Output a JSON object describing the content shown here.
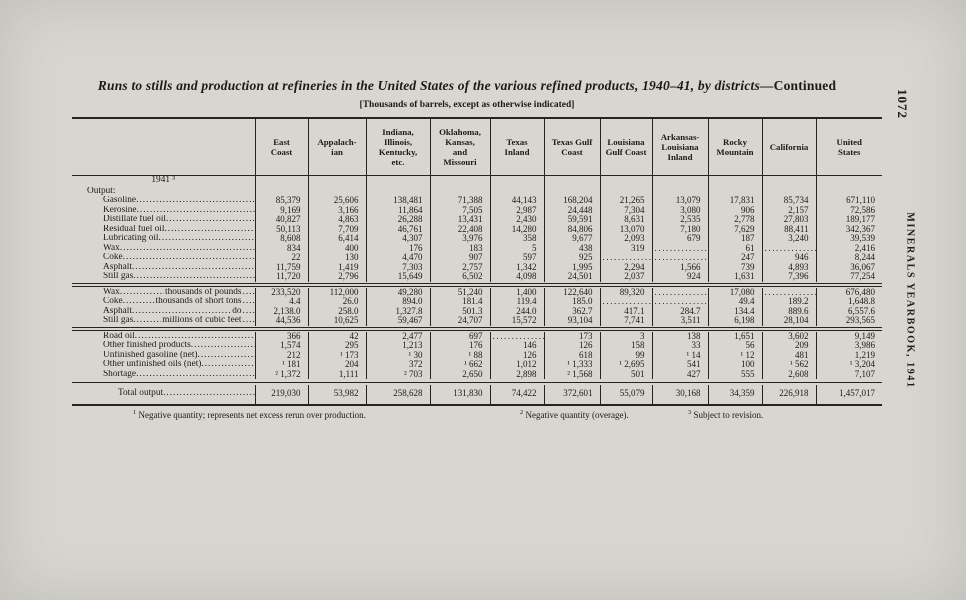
{
  "page": {
    "number": "1072",
    "side_text": "MINERALS YEARBOOK, 1941",
    "title_italic": "Runs to stills and production at refineries in the United States of the various refined products, 1940–41, by districts—",
    "title_continued": "Continued",
    "subtitle": "[Thousands of barrels, except as otherwise indicated]"
  },
  "table": {
    "stub": {
      "year_heading": "1941 ³",
      "section": "Output:",
      "total_label": "Total output"
    },
    "columns": [
      "East\nCoast",
      "Appalach-\nian",
      "Indiana,\nIllinois,\nKentucky,\netc.",
      "Oklahoma,\nKansas,\nand\nMissouri",
      "Texas\nInland",
      "Texas Gulf\nCoast",
      "Louisiana\nGulf Coast",
      "Arkansas-\nLouisiana\nInland",
      "Rocky\nMountain",
      "California",
      "United\nStates"
    ],
    "groups": [
      {
        "rows": [
          {
            "label": "Gasoline",
            "cells": [
              "85,379",
              "25,606",
              "138,481",
              "71,388",
              "44,143",
              "168,204",
              "21,265",
              "13,079",
              "17,831",
              "85,734",
              "671,110"
            ]
          },
          {
            "label": "Kerosine",
            "cells": [
              "9,169",
              "3,166",
              "11,864",
              "7,505",
              "2,987",
              "24,448",
              "7,304",
              "3,080",
              "906",
              "2,157",
              "72,586"
            ]
          },
          {
            "label": "Distillate fuel oil",
            "cells": [
              "40,827",
              "4,863",
              "26,288",
              "13,431",
              "2,430",
              "59,591",
              "8,631",
              "2,535",
              "2,778",
              "27,803",
              "189,177"
            ]
          },
          {
            "label": "Residual fuel oil",
            "cells": [
              "50,113",
              "7,709",
              "46,761",
              "22,408",
              "14,280",
              "84,806",
              "13,070",
              "7,180",
              "7,629",
              "88,411",
              "342,367"
            ]
          },
          {
            "label": "Lubricating oil",
            "cells": [
              "8,608",
              "6,414",
              "4,307",
              "3,976",
              "358",
              "9,677",
              "2,093",
              "679",
              "187",
              "3,240",
              "39,539"
            ]
          },
          {
            "label": "Wax",
            "cells": [
              "834",
              "400",
              "176",
              "183",
              "5",
              "438",
              "319",
              null,
              "61",
              null,
              "2,416"
            ]
          },
          {
            "label": "Coke",
            "cells": [
              "22",
              "130",
              "4,470",
              "907",
              "597",
              "925",
              null,
              null,
              "247",
              "946",
              "8,244"
            ]
          },
          {
            "label": "Asphalt",
            "cells": [
              "11,759",
              "1,419",
              "7,303",
              "2,757",
              "1,342",
              "1,995",
              "2,294",
              "1,566",
              "739",
              "4,893",
              "36,067"
            ]
          },
          {
            "label": "Still gas",
            "cells": [
              "11,720",
              "2,796",
              "15,649",
              "6,502",
              "4,098",
              "24,501",
              "2,037",
              "924",
              "1,631",
              "7,396",
              "77,254"
            ]
          }
        ]
      },
      {
        "rows": [
          {
            "label": "Wax",
            "unit": "thousands of pounds",
            "cells": [
              "233,520",
              "112,000",
              "49,280",
              "51,240",
              "1,400",
              "122,640",
              "89,320",
              null,
              "17,080",
              null,
              "676,480"
            ]
          },
          {
            "label": "Coke",
            "unit": "thousands of short tons",
            "cells": [
              "4.4",
              "26.0",
              "894.0",
              "181.4",
              "119.4",
              "185.0",
              null,
              null,
              "49.4",
              "189.2",
              "1,648.8"
            ]
          },
          {
            "label": "Asphalt",
            "unit": "do",
            "cells": [
              "2,138.0",
              "258.0",
              "1,327.8",
              "501.3",
              "244.0",
              "362.7",
              "417.1",
              "284.7",
              "134.4",
              "889.6",
              "6,557.6"
            ]
          },
          {
            "label": "Still gas",
            "unit": "millions of cubic feet",
            "cells": [
              "44,536",
              "10,625",
              "59,467",
              "24,707",
              "15,572",
              "93,104",
              "7,741",
              "3,511",
              "6,198",
              "28,104",
              "293,565"
            ]
          }
        ]
      },
      {
        "rows": [
          {
            "label": "Road oil",
            "cells": [
              "366",
              "42",
              "2,477",
              "697",
              null,
              "173",
              "3",
              "138",
              "1,651",
              "3,602",
              "9,149"
            ]
          },
          {
            "label": "Other finished products",
            "cells": [
              "1,574",
              "295",
              "1,213",
              "176",
              "146",
              "126",
              "158",
              "33",
              "56",
              "209",
              "3,986"
            ]
          },
          {
            "label": "Unfinished gasoline (net)",
            "cells": [
              "212",
              "¹ 173",
              "¹ 30",
              "¹ 88",
              "126",
              "618",
              "99",
              "¹ 14",
              "¹ 12",
              "481",
              "1,219"
            ]
          },
          {
            "label": "Other unfinished oils (net)",
            "cells": [
              "¹ 181",
              "204",
              "372",
              "¹ 662",
              "1,012",
              "¹ 1,333",
              "¹ 2,695",
              "541",
              "100",
              "¹ 562",
              "¹ 3,204"
            ]
          },
          {
            "label": "Shortage",
            "cells": [
              "² 1,372",
              "1,111",
              "² 703",
              "2,650",
              "2,898",
              "² 1,568",
              "501",
              "427",
              "555",
              "2,608",
              "7,107"
            ]
          }
        ]
      }
    ],
    "total": {
      "cells": [
        "219,030",
        "53,982",
        "258,628",
        "131,830",
        "74,422",
        "372,601",
        "55,079",
        "30,168",
        "34,359",
        "226,918",
        "1,457,017"
      ]
    }
  },
  "footnotes": [
    {
      "mark": "1",
      "text": "Negative quantity; represents net excess rerun over production."
    },
    {
      "mark": "2",
      "text": "Negative quantity (overage)."
    },
    {
      "mark": "3",
      "text": "Subject to revision."
    }
  ]
}
